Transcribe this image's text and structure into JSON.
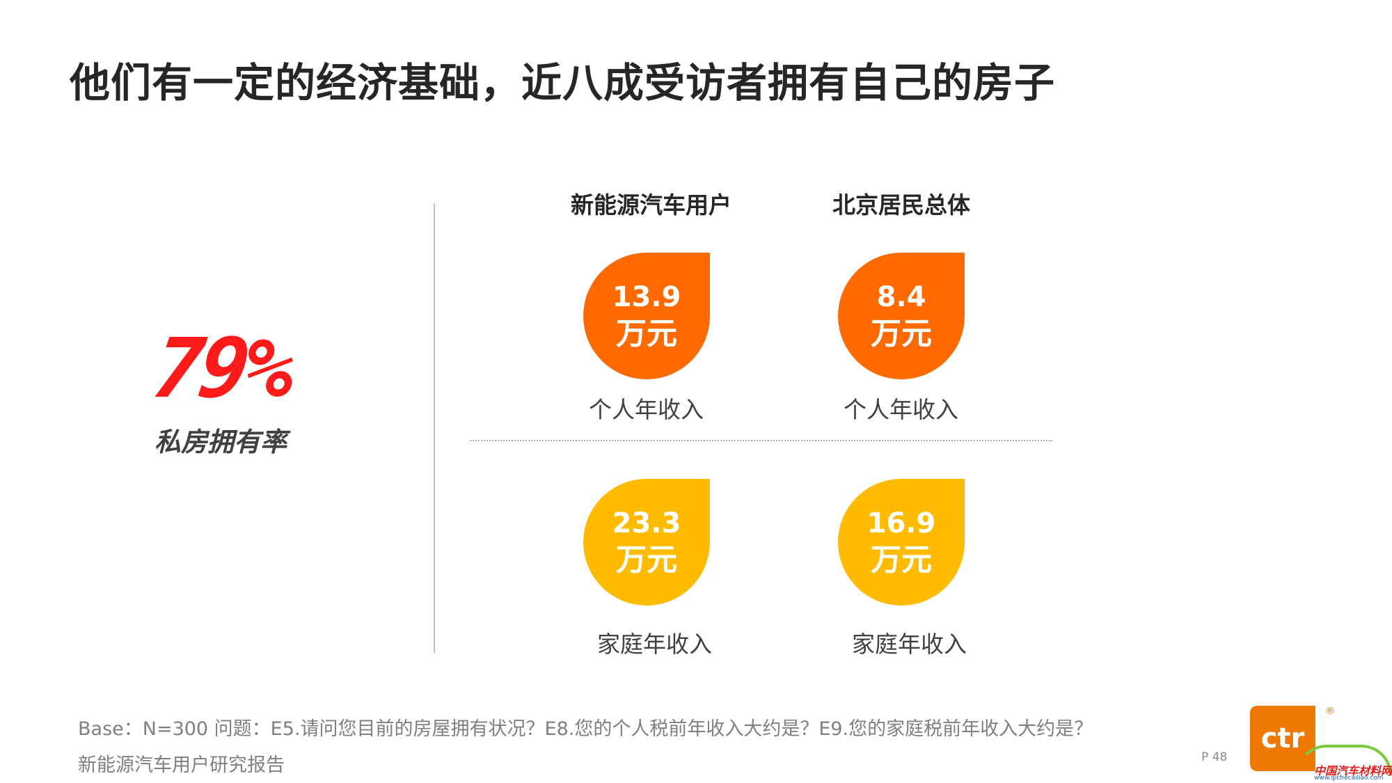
{
  "slide": {
    "title": "他们有一定的经济基础，近八成受访者拥有自己的房子"
  },
  "ownership": {
    "value": "79%",
    "label": "私房拥有率"
  },
  "columns": [
    {
      "header": "新能源汽车用户",
      "personal": {
        "value": "13.9",
        "unit": "万元",
        "label": "个人年收入"
      },
      "household": {
        "value": "23.3",
        "unit": "万元",
        "label": "家庭年收入"
      }
    },
    {
      "header": "北京居民总体",
      "personal": {
        "value": "8.4",
        "unit": "万元",
        "label": "个人年收入"
      },
      "household": {
        "value": "16.9",
        "unit": "万元",
        "label": "家庭年收入"
      }
    }
  ],
  "footer": {
    "base_note": "Base：N=300    问题：E5.请问您目前的房屋拥有状况？E8.您的个人税前年收入大约是？E9.您的家庭税前年收入大约是？",
    "report_name": "新能源汽车用户研究报告",
    "page": "P 48"
  },
  "logo": {
    "text": "ctr",
    "registered": "®"
  },
  "watermark": {
    "name": "中国汽车材料网",
    "url": "www.qichecailiao.com"
  },
  "colors": {
    "personal_income": "#ff6a00",
    "household_income": "#ffbb00",
    "highlight": "#ff1a1a",
    "brand": "#ee7800"
  }
}
